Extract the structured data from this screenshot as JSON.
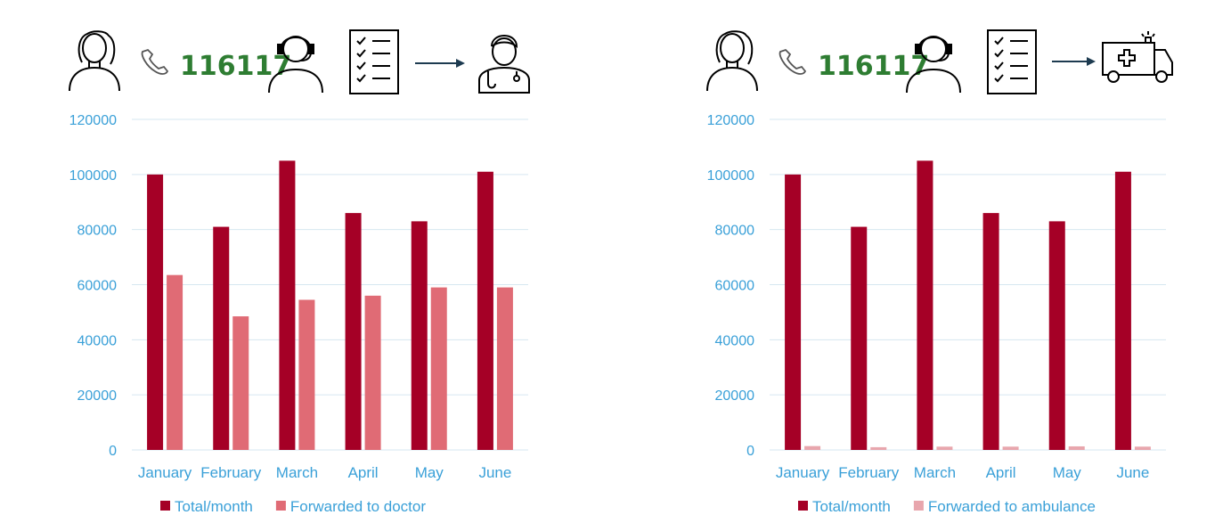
{
  "phone_number": "116117",
  "colors": {
    "total": "#a50026",
    "doctor": "#e06b75",
    "ambulance": "#e8a6ad",
    "axis_text": "#3aa0d8",
    "grid": "#d6e7f0",
    "phone_green": "#2e7d32"
  },
  "icons": [
    "caller-icon",
    "phone-icon",
    "operator-headset-icon",
    "checklist-icon",
    "arrow-right-icon",
    "doctor-icon",
    "ambulance-icon"
  ],
  "chart_data": [
    {
      "type": "bar",
      "categories": [
        "January",
        "February",
        "March",
        "April",
        "May",
        "June"
      ],
      "series": [
        {
          "name": "Total/month",
          "values": [
            100000,
            81000,
            105000,
            86000,
            83000,
            101000
          ]
        },
        {
          "name": "Forwarded to doctor",
          "values": [
            63500,
            48500,
            54500,
            56000,
            59000,
            59000
          ]
        }
      ],
      "y_ticks": [
        "0",
        "20000",
        "40000",
        "60000",
        "80000",
        "100000",
        "120000"
      ],
      "ylim": [
        0,
        120000
      ],
      "grid": true,
      "legend": "bottom"
    },
    {
      "type": "bar",
      "categories": [
        "January",
        "February",
        "March",
        "April",
        "May",
        "June"
      ],
      "series": [
        {
          "name": "Total/month",
          "values": [
            100000,
            81000,
            105000,
            86000,
            83000,
            101000
          ]
        },
        {
          "name": "Forwarded to ambulance",
          "values": [
            1400,
            1000,
            1200,
            1200,
            1300,
            1200
          ]
        }
      ],
      "y_ticks": [
        "0",
        "20000",
        "40000",
        "60000",
        "80000",
        "100000",
        "120000"
      ],
      "ylim": [
        0,
        120000
      ],
      "grid": true,
      "legend": "bottom"
    }
  ]
}
